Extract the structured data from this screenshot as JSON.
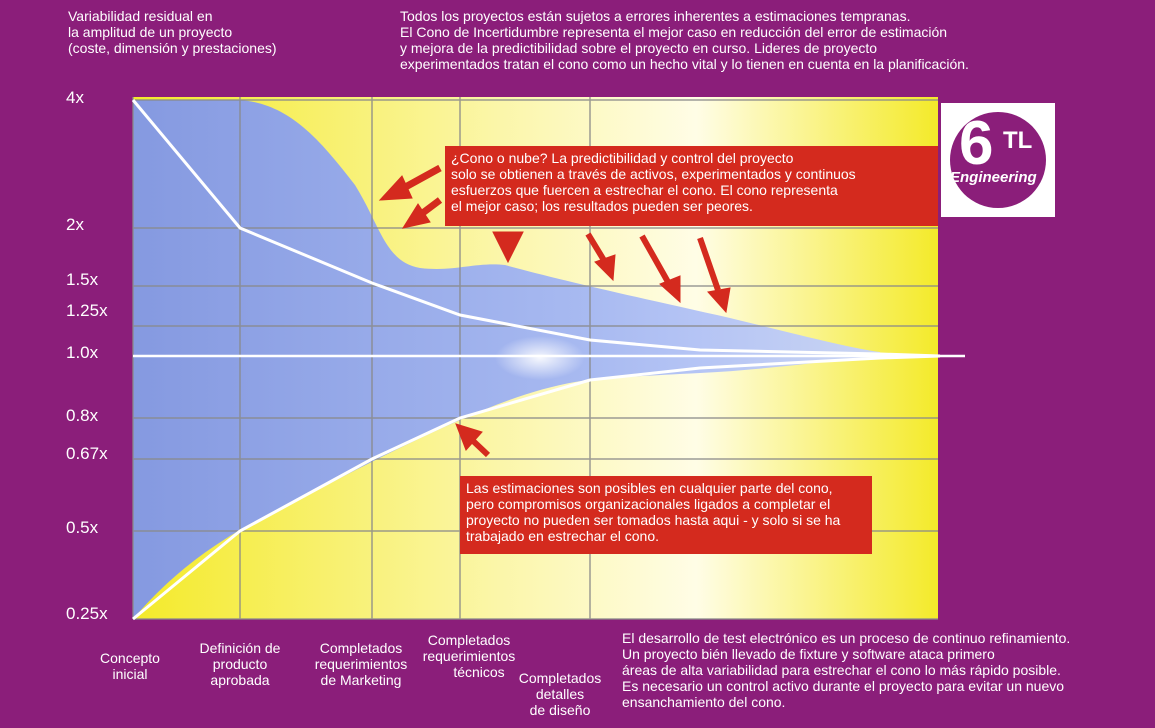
{
  "header": {
    "y_axis_title_lines": [
      "Variabilidad residual en",
      "la amplitud de un proyecto",
      "(coste, dimensión y prestaciones)"
    ],
    "intro_lines": [
      "Todos los proyectos están sujetos a errores inherentes a estimaciones tempranas.",
      "El Cono de Incertidumbre representa el mejor caso en reducción del error de estimación",
      "y mejora de la predictibilidad sobre el proyecto en curso. Lideres de proyecto",
      "experimentados tratan el cono como un hecho vital y lo tienen en cuenta en la planificación."
    ]
  },
  "logo": {
    "number": "6",
    "letters": "TL",
    "word": "Engineering"
  },
  "y_ticks": [
    {
      "label": "4x",
      "value": 4
    },
    {
      "label": "2x",
      "value": 2
    },
    {
      "label": "1.5x",
      "value": 1.5
    },
    {
      "label": "1.25x",
      "value": 1.25
    },
    {
      "label": "1.0x",
      "value": 1.0
    },
    {
      "label": "0.8x",
      "value": 0.8
    },
    {
      "label": "0.67x",
      "value": 0.67
    },
    {
      "label": "0.5x",
      "value": 0.5
    },
    {
      "label": "0.25x",
      "value": 0.25
    }
  ],
  "phases": [
    {
      "lines": [
        "Concepto",
        "inicial"
      ]
    },
    {
      "lines": [
        "Definición de",
        "producto",
        "aprobada"
      ]
    },
    {
      "lines": [
        "Completados",
        "requerimientos",
        "de Marketing"
      ]
    },
    {
      "lines": [
        "Completados",
        "requerimientos",
        "técnicos"
      ]
    },
    {
      "lines": [
        "Completados",
        "detalles",
        "de diseño"
      ]
    }
  ],
  "notes": {
    "cloud_lines": [
      "¿Cono o nube? La predictibilidad y control del proyecto",
      "solo se obtienen a través de activos, experimentados y continuos",
      "esfuerzos que fuercen a estrechar el cono. El cono representa",
      "el mejor caso; los resultados pueden ser peores."
    ],
    "estimate_lines": [
      "Las estimaciones son posibles en cualquier parte del cono,",
      "pero compromisos organizacionales ligados a completar el",
      "proyecto no pueden ser tomados hasta aqui - y solo si se ha",
      "trabajado en estrechar el cono."
    ],
    "footer_lines": [
      "El desarrollo de test electrónico es un proceso de continuo refinamiento.",
      "Un proyecto bién llevado de fixture y software ataca primero",
      "áreas de alta variabilidad para estrechar el cono lo más rápido posible.",
      "Es necesario un control activo durante el proyecto para evitar un nuevo",
      "ensanchamiento del cono."
    ]
  },
  "colors": {
    "background": "#8b1e7a",
    "panel_yellow": "#f6ee3a",
    "cloud_blue": "#8fa6ee",
    "note_red": "#d42a1e",
    "arrow_red": "#d42a1e"
  }
}
